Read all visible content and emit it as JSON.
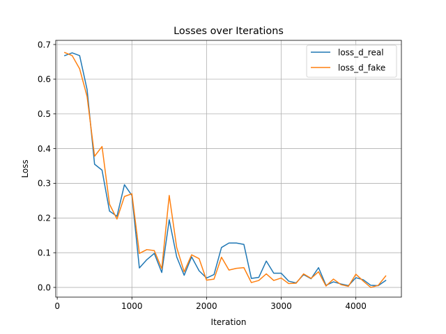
{
  "chart_data": {
    "type": "line",
    "title": "Losses over Iterations",
    "xlabel": "Iteration",
    "ylabel": "Loss",
    "xlim": [
      -20,
      4610
    ],
    "ylim": [
      -0.028,
      0.712
    ],
    "xticks": [
      0,
      1000,
      2000,
      3000,
      4000
    ],
    "xtick_labels": [
      "0",
      "1000",
      "2000",
      "3000",
      "4000"
    ],
    "yticks": [
      0.0,
      0.1,
      0.2,
      0.3,
      0.4,
      0.5,
      0.6,
      0.7
    ],
    "ytick_labels": [
      "0.0",
      "0.1",
      "0.2",
      "0.3",
      "0.4",
      "0.5",
      "0.6",
      "0.7"
    ],
    "grid": true,
    "legend_position": "top-right",
    "x": [
      100,
      200,
      300,
      400,
      500,
      600,
      700,
      800,
      900,
      1000,
      1100,
      1200,
      1300,
      1400,
      1500,
      1600,
      1700,
      1800,
      1900,
      2000,
      2100,
      2200,
      2300,
      2400,
      2500,
      2600,
      2700,
      2800,
      2900,
      3000,
      3100,
      3200,
      3300,
      3400,
      3500,
      3600,
      3700,
      3800,
      3900,
      4000,
      4100,
      4200,
      4300,
      4400
    ],
    "series": [
      {
        "name": "loss_d_real",
        "color": "#1f77b4",
        "values": [
          0.668,
          0.676,
          0.668,
          0.57,
          0.355,
          0.338,
          0.22,
          0.205,
          0.296,
          0.265,
          0.056,
          0.08,
          0.098,
          0.043,
          0.195,
          0.088,
          0.035,
          0.088,
          0.048,
          0.027,
          0.037,
          0.115,
          0.128,
          0.128,
          0.124,
          0.026,
          0.029,
          0.076,
          0.041,
          0.041,
          0.018,
          0.013,
          0.037,
          0.025,
          0.057,
          0.006,
          0.016,
          0.01,
          0.005,
          0.028,
          0.022,
          0.006,
          0.005,
          0.02
        ]
      },
      {
        "name": "loss_d_fake",
        "color": "#ff7f0e",
        "values": [
          0.677,
          0.668,
          0.63,
          0.55,
          0.378,
          0.406,
          0.24,
          0.197,
          0.262,
          0.27,
          0.098,
          0.109,
          0.106,
          0.054,
          0.265,
          0.115,
          0.045,
          0.094,
          0.083,
          0.021,
          0.024,
          0.087,
          0.05,
          0.055,
          0.057,
          0.014,
          0.02,
          0.039,
          0.02,
          0.027,
          0.011,
          0.012,
          0.039,
          0.026,
          0.045,
          0.004,
          0.024,
          0.008,
          0.003,
          0.038,
          0.018,
          0.0,
          0.006,
          0.033
        ]
      }
    ]
  }
}
